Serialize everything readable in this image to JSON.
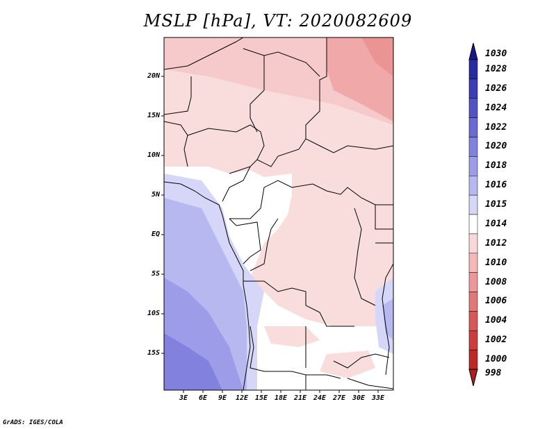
{
  "title": "MSLP [hPa], VT: 2020082609",
  "credit": "GrADS: IGES/COLA",
  "lat_labels": [
    "20N",
    "15N",
    "10N",
    "5N",
    "EQ",
    "5S",
    "10S",
    "15S"
  ],
  "lon_labels": [
    "3E",
    "6E",
    "9E",
    "12E",
    "15E",
    "18E",
    "21E",
    "24E",
    "27E",
    "30E",
    "33E"
  ],
  "colorbar": {
    "levels": [
      "1030",
      "1028",
      "1026",
      "1024",
      "1022",
      "1020",
      "1018",
      "1016",
      "1015",
      "1014",
      "1012",
      "1010",
      "1008",
      "1006",
      "1004",
      "1002",
      "1000",
      "998"
    ],
    "colors": [
      "#18188a",
      "#2a2aa0",
      "#3c3cb4",
      "#5252c4",
      "#6a6ad2",
      "#8282de",
      "#9c9ce8",
      "#b8b8f0",
      "#d6d6f8",
      "#ffffff",
      "#f8d8d8",
      "#f4b8b8",
      "#ec9898",
      "#e07878",
      "#d85858",
      "#cc3c3c",
      "#bc2828",
      "#a82020"
    ]
  },
  "colors": {
    "land_outline": "#000000",
    "high_pressure": "#9c9ce8",
    "low_pressure": "#ec9898"
  }
}
